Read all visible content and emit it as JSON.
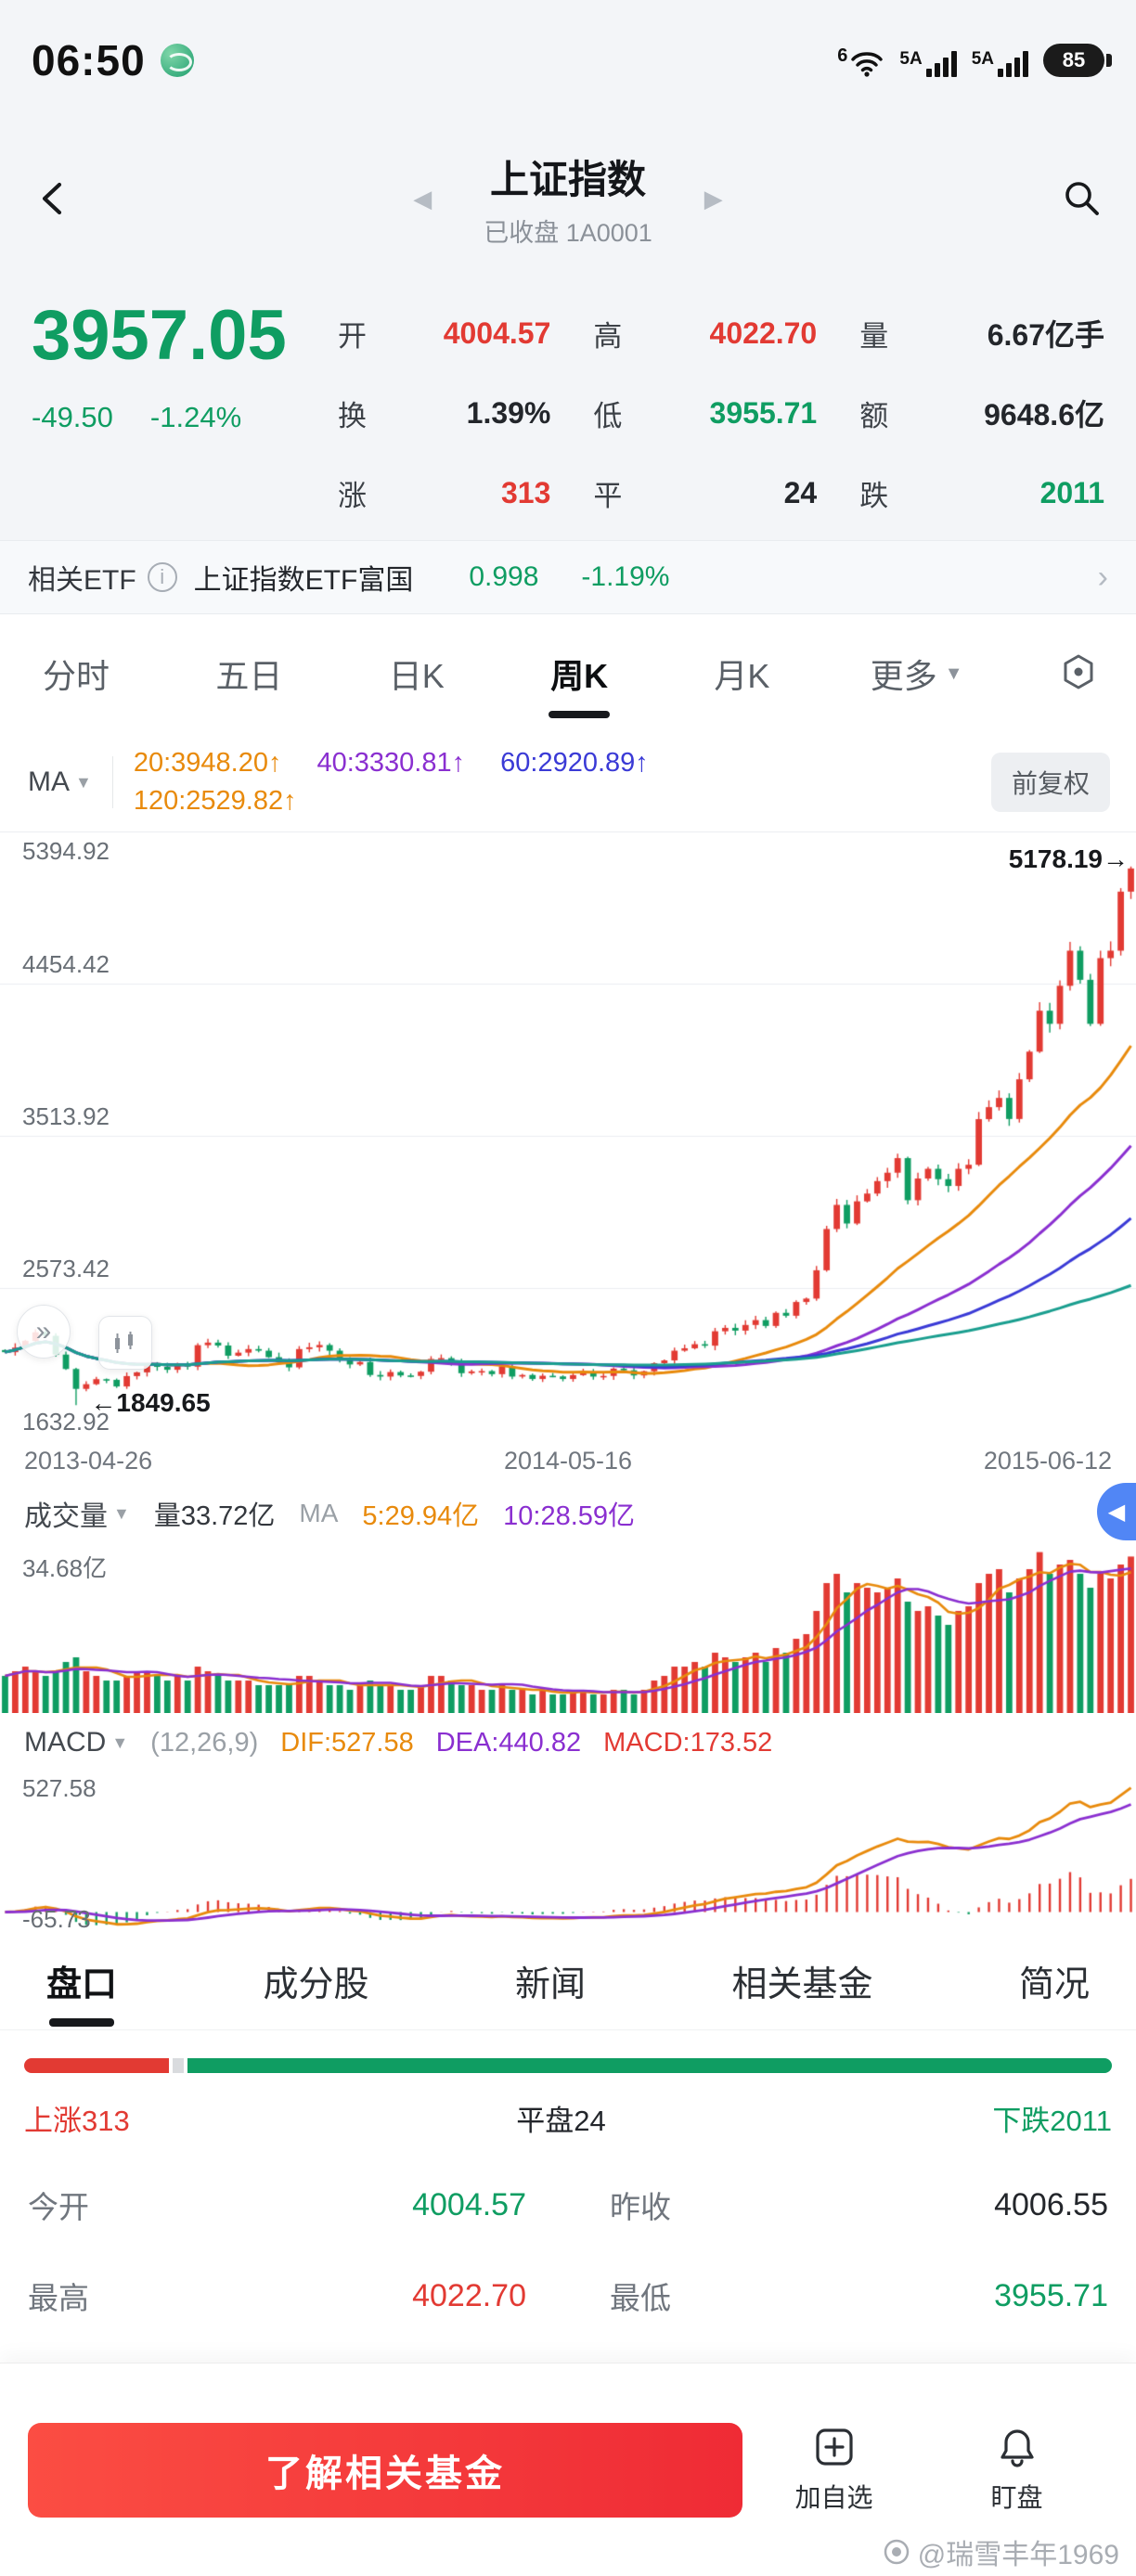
{
  "status_bar": {
    "time": "06:50",
    "wifi_badge": "6",
    "sim1": "5A",
    "sim2": "5A",
    "battery": "85"
  },
  "header": {
    "title": "上证指数",
    "subtitle": "已收盘 1A0001"
  },
  "quote": {
    "price": "3957.05",
    "change": "-49.50",
    "change_pct": "-1.24%",
    "grid": [
      {
        "label": "开",
        "value": "4004.57",
        "tone": "red"
      },
      {
        "label": "高",
        "value": "4022.70",
        "tone": "red"
      },
      {
        "label": "量",
        "value": "6.67亿手",
        "tone": "dark"
      },
      {
        "label": "换",
        "value": "1.39%",
        "tone": "dark"
      },
      {
        "label": "低",
        "value": "3955.71",
        "tone": "green"
      },
      {
        "label": "额",
        "value": "9648.6亿",
        "tone": "dark"
      },
      {
        "label": "涨",
        "value": "313",
        "tone": "red"
      },
      {
        "label": "平",
        "value": "24",
        "tone": "dark"
      },
      {
        "label": "跌",
        "value": "2011",
        "tone": "green"
      }
    ]
  },
  "etf": {
    "label": "相关ETF",
    "name": "上证指数ETF富国",
    "price": "0.998",
    "pct": "-1.19%"
  },
  "period_tabs": {
    "items": [
      "分时",
      "五日",
      "日K",
      "周K",
      "月K"
    ],
    "active": "周K",
    "more": "更多"
  },
  "ma_panel": {
    "chip": "MA",
    "items": [
      {
        "text": "20:3948.20↑"
      },
      {
        "text": "40:3330.81↑"
      },
      {
        "text": "60:2920.89↑"
      },
      {
        "text": "120:2529.82↑"
      }
    ],
    "adjust": "前复权"
  },
  "vol_panel": {
    "chip": "成交量",
    "current": "量33.72亿",
    "ma_label": "MA",
    "ma5": "5:29.94亿",
    "ma10": "10:28.59亿"
  },
  "macd_panel": {
    "chip": "MACD",
    "params": "(12,26,9)",
    "dif": "DIF:527.58",
    "dea": "DEA:440.82",
    "val": "MACD:173.52",
    "y_max": "527.58",
    "y_min": "-65.73"
  },
  "bottom_tabs": {
    "items": [
      "盘口",
      "成分股",
      "新闻",
      "相关基金",
      "简况"
    ],
    "active": "盘口"
  },
  "breadth": {
    "up": 313,
    "flat": 24,
    "down": 2011,
    "up_label": "上涨313",
    "flat_label": "平盘24",
    "down_label": "下跌2011"
  },
  "detail": {
    "cells": [
      {
        "label": "今开",
        "value": "4004.57",
        "tone": "green"
      },
      {
        "label": "昨收",
        "value": "4006.55",
        "tone": "dark"
      },
      {
        "label": "最高",
        "value": "4022.70",
        "tone": "red"
      },
      {
        "label": "最低",
        "value": "3955.71",
        "tone": "green"
      }
    ]
  },
  "footer": {
    "cta": "了解相关基金",
    "add": "加自选",
    "watch": "盯盘"
  },
  "watermark": {
    "text": "@瑞雪丰年1969"
  },
  "colors": {
    "up": "#e23a33",
    "down": "#0f9d62",
    "accent_blue": "#5186f5",
    "cta_red": "#ef2b35"
  },
  "chart_data": {
    "type": "candlestick",
    "period": "weekly",
    "x_labels": [
      "2013-04-26",
      "2014-05-16",
      "2015-06-12"
    ],
    "y_ticks": [
      5394.92,
      4454.42,
      3513.92,
      2573.42,
      1632.92
    ],
    "y_range": [
      1632.92,
      5394.92
    ],
    "annotations": {
      "high": "5178.19→",
      "low": "←1849.65"
    },
    "open_first": 2190,
    "closes": [
      2177,
      2205,
      2247,
      2300,
      2278,
      2162,
      2073,
      1950,
      1979,
      2010,
      2006,
      1965,
      2029,
      2052,
      2101,
      2086,
      2068,
      2098,
      2087,
      2220,
      2236,
      2218,
      2155,
      2174,
      2196,
      2186,
      2146,
      2115,
      2083,
      2196,
      2207,
      2221,
      2186,
      2137,
      2101,
      2116,
      2036,
      2026,
      2054,
      2033,
      2030,
      2056,
      2135,
      2140,
      2113,
      2047,
      2058,
      2060,
      2041,
      2089,
      2026,
      2036,
      2011,
      2031,
      2027,
      2011,
      2035,
      2053,
      2026,
      2030,
      2075,
      2065,
      2033,
      2059,
      2109,
      2126,
      2186,
      2201,
      2226,
      2217,
      2306,
      2327,
      2310,
      2345,
      2375,
      2339,
      2420,
      2402,
      2487,
      2508,
      2683,
      2938,
      3087,
      2972,
      3109,
      3157,
      3234,
      3286,
      3376,
      3116,
      3250,
      3310,
      3246,
      3204,
      3310,
      3335,
      3617,
      3691,
      3748,
      3618,
      3863,
      4034,
      4287,
      4206,
      4441,
      4658,
      4478,
      4206,
      4612,
      4658,
      5023,
      5166
    ],
    "volumes": [
      8,
      9,
      10,
      9,
      8,
      9,
      11,
      12,
      9,
      8,
      7,
      7,
      8,
      9,
      9,
      8,
      7,
      8,
      7,
      10,
      9,
      8,
      7,
      7,
      7,
      6,
      6,
      6,
      6,
      8,
      8,
      7,
      6,
      6,
      5,
      6,
      7,
      6,
      6,
      5,
      5,
      6,
      8,
      8,
      7,
      6,
      6,
      5,
      5,
      6,
      5,
      5,
      4,
      5,
      4,
      4,
      5,
      5,
      4,
      4,
      5,
      5,
      4,
      5,
      7,
      8,
      10,
      10,
      11,
      10,
      13,
      12,
      11,
      12,
      13,
      11,
      14,
      13,
      16,
      17,
      22,
      28,
      30,
      26,
      28,
      27,
      26,
      27,
      29,
      24,
      22,
      23,
      21,
      19,
      22,
      23,
      28,
      30,
      31,
      26,
      29,
      31,
      34.68,
      30,
      32,
      33,
      30,
      27,
      30,
      29,
      32,
      33.72
    ],
    "low_overrides": {
      "7": 1849.65
    },
    "high_overrides": {
      "111": 5178.19
    },
    "low_annotation_index": 7,
    "low_annotation_value": 1849.65,
    "high_annotation_value": 5178.19,
    "ma_periods": [
      20,
      40,
      60,
      120
    ],
    "ma_colors": {
      "20": "#e88a0c",
      "40": "#8a2fd0",
      "60": "#3a3ad6",
      "120": "#1a9e8f"
    },
    "up_color": "#e23a33",
    "down_color": "#0f9d62",
    "volume_axis_max": "34.68亿",
    "vol_ma_colors": {
      "5": "#e88a0c",
      "10": "#8a2fd0"
    },
    "macd_range": [
      -80,
      560
    ]
  }
}
